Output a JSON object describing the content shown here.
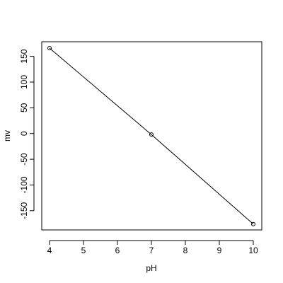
{
  "chart_data": {
    "type": "line",
    "title": "",
    "xlabel": "pH",
    "ylabel": "mv",
    "xlim": [
      4,
      10
    ],
    "ylim": [
      -175,
      166
    ],
    "x": [
      4,
      7,
      10
    ],
    "series": [
      {
        "values": [
          166,
          -2,
          -176
        ]
      }
    ],
    "x_ticks": [
      4,
      5,
      6,
      7,
      8,
      9,
      10
    ],
    "x_tick_labels": [
      "4",
      "5",
      "6",
      "7",
      "8",
      "9",
      "10"
    ],
    "y_ticks": [
      -150,
      -100,
      -50,
      0,
      50,
      100,
      150
    ],
    "y_tick_labels": [
      "-150",
      "-100",
      "-50",
      "0",
      "50",
      "100",
      "150"
    ],
    "marker": "open-circle",
    "grid": false,
    "line_color": "#000000"
  }
}
